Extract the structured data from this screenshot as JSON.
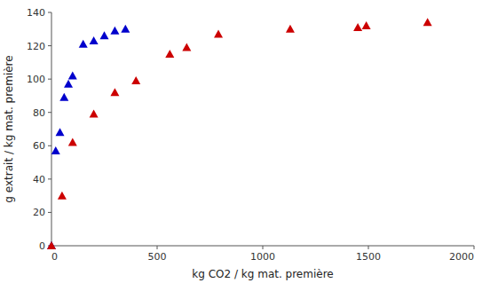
{
  "chart_data": {
    "type": "scatter",
    "xlabel": "kg CO2 / kg mat. première",
    "ylabel": "g extrait / kg mat. première",
    "series": [
      {
        "color": "#0000cc",
        "marker": "triangle",
        "x": [
          0,
          20,
          40,
          60,
          80,
          100,
          150,
          200,
          250,
          300,
          350
        ],
        "values": [
          0,
          57,
          68,
          89,
          97,
          102,
          121,
          123,
          126,
          129,
          130
        ]
      },
      {
        "color": "#cc0000",
        "marker": "triangle",
        "x": [
          0,
          50,
          100,
          200,
          300,
          400,
          560,
          640,
          790,
          1130,
          1450,
          1490,
          1780
        ],
        "values": [
          0,
          30,
          62,
          79,
          92,
          99,
          115,
          119,
          127,
          130,
          131,
          132,
          134
        ]
      }
    ],
    "xlim": [
      0,
      2000
    ],
    "ylim": [
      0,
      140
    ],
    "xticks": [
      0,
      500,
      1000,
      1500,
      2000
    ],
    "yticks": [
      0,
      20,
      40,
      60,
      80,
      100,
      120,
      140
    ],
    "grid": false
  }
}
